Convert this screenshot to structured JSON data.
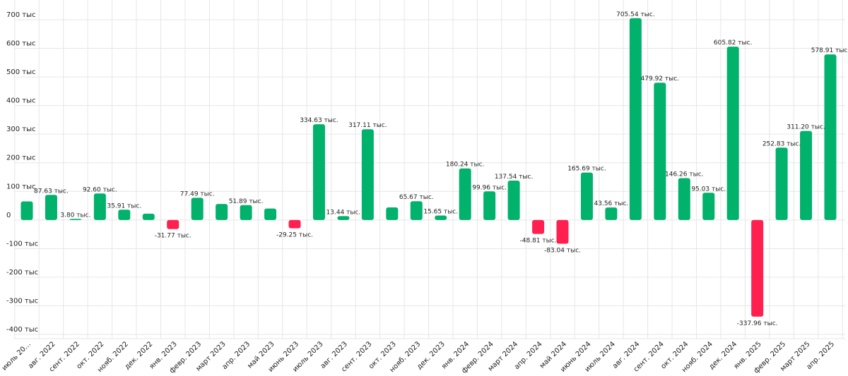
{
  "chart_data": {
    "type": "bar",
    "title": "",
    "xlabel": "",
    "ylabel": "",
    "ylim": [
      -400,
      700
    ],
    "grid": true,
    "colors": {
      "positive": "#00b26b",
      "negative": "#ff2050",
      "grid": "#e6e6e6"
    },
    "yticks": [
      {
        "value": 700,
        "label": "700 тыс"
      },
      {
        "value": 600,
        "label": "600 тыс"
      },
      {
        "value": 500,
        "label": "500 тыс"
      },
      {
        "value": 400,
        "label": "400 тыс"
      },
      {
        "value": 300,
        "label": "300 тыс"
      },
      {
        "value": 200,
        "label": "200 тыс"
      },
      {
        "value": 100,
        "label": "100 тыс"
      },
      {
        "value": 0,
        "label": "0"
      },
      {
        "value": -100,
        "label": "-100 тыс"
      },
      {
        "value": -200,
        "label": "-200 тыс"
      },
      {
        "value": -300,
        "label": "-300 тыс"
      },
      {
        "value": -400,
        "label": "-400 тыс"
      }
    ],
    "categories": [
      "июль 20…",
      "авг. 2022",
      "сент. 2022",
      "окт. 2022",
      "нояб. 2022",
      "дек. 2022",
      "янв. 2023",
      "февр. 2023",
      "март 2023",
      "апр. 2023",
      "май 2023",
      "июнь 2023",
      "июль 2023",
      "авг. 2023",
      "сент. 2023",
      "окт. 2023",
      "нояб. 2023",
      "дек. 2023",
      "янв. 2024",
      "февр. 2024",
      "март 2024",
      "апр. 2024",
      "май 2024",
      "июнь 2024",
      "июль 2024",
      "авг. 2024",
      "сент. 2024",
      "окт. 2024",
      "нояб. 2024",
      "дек. 2024",
      "янв. 2025",
      "февр. 2025",
      "март 2025",
      "апр. 2025"
    ],
    "values": [
      65,
      87.63,
      3.8,
      92.6,
      35.91,
      22,
      -31.77,
      77.49,
      56,
      51.89,
      40,
      -29.25,
      334.63,
      13.44,
      317.11,
      44,
      65.67,
      15.65,
      180.24,
      99.96,
      137.54,
      -48.81,
      -83.04,
      165.69,
      43.56,
      705.54,
      479.92,
      146.26,
      95.03,
      605.82,
      -337.96,
      252.83,
      311.2,
      578.91
    ],
    "data_labels": [
      "",
      "87.63 тыс.",
      "3.80 тыс.",
      "92.60 тыс.",
      "35.91 тыс.",
      "",
      "-31.77 тыс.",
      "77.49 тыс.",
      "",
      "51.89 тыс.",
      "",
      "-29.25 тыс.",
      "334.63 тыс.",
      "13.44 тыс.",
      "317.11 тыс.",
      "",
      "65.67 тыс.",
      "15.65 тыс.",
      "180.24 тыс.",
      "99.96 тыс.",
      "137.54 тыс.",
      "-48.81 тыс.",
      "-83.04 тыс.",
      "165.69 тыс.",
      "43.56 тыс.",
      "705.54 тыс.",
      "479.92 тыс.",
      "146.26 тыс.",
      "95.03 тыс.",
      "605.82 тыс.",
      "-337.96 тыс.",
      "252.83 тыс.",
      "311.20 тыс.",
      "578.91 тыс."
    ]
  }
}
